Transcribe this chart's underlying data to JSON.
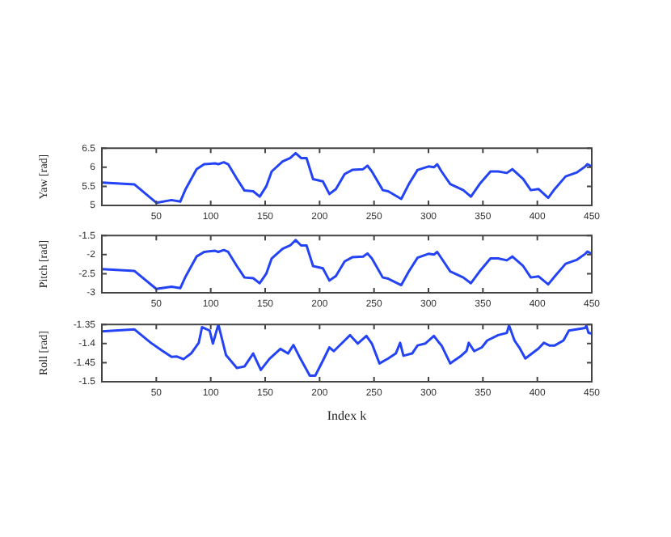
{
  "chart_data": [
    {
      "type": "line",
      "ylabel": "Yaw [rad]",
      "x": [
        0,
        30,
        50,
        64,
        72,
        77,
        87,
        94,
        104,
        107,
        112,
        116,
        124,
        131,
        139,
        145,
        151,
        156,
        166,
        173,
        178,
        183,
        188,
        194,
        203,
        209,
        215,
        223,
        230,
        240,
        244,
        248,
        258,
        263,
        275,
        282,
        290,
        300,
        305,
        308,
        312,
        320,
        332,
        339,
        347,
        357,
        364,
        372,
        377,
        387,
        394,
        401,
        410,
        416,
        426,
        436,
        444,
        446,
        450
      ],
      "series": [
        {
          "color": "#2343f5",
          "values": [
            5.6,
            5.55,
            5.07,
            5.14,
            5.1,
            5.43,
            5.95,
            6.08,
            6.1,
            6.08,
            6.13,
            6.08,
            5.7,
            5.39,
            5.37,
            5.23,
            5.5,
            5.89,
            6.15,
            6.24,
            6.37,
            6.24,
            6.24,
            5.69,
            5.63,
            5.3,
            5.43,
            5.82,
            5.93,
            5.95,
            6.04,
            5.89,
            5.4,
            5.37,
            5.17,
            5.56,
            5.93,
            6.02,
            6.0,
            6.08,
            5.89,
            5.56,
            5.4,
            5.23,
            5.56,
            5.89,
            5.89,
            5.85,
            5.95,
            5.69,
            5.4,
            5.43,
            5.2,
            5.43,
            5.76,
            5.86,
            6.02,
            6.08,
            6.02
          ]
        }
      ],
      "xlim": [
        0,
        450
      ],
      "xticks": [
        50,
        100,
        150,
        200,
        250,
        300,
        350,
        400,
        450
      ],
      "ylim": [
        5,
        6.5
      ],
      "yticks": [
        5,
        5.5,
        6,
        6.5
      ],
      "grid": false,
      "legend": false
    },
    {
      "type": "line",
      "ylabel": "Pitch [rad]",
      "x": [
        0,
        30,
        50,
        64,
        72,
        77,
        87,
        94,
        104,
        107,
        112,
        116,
        124,
        131,
        139,
        145,
        151,
        156,
        166,
        173,
        178,
        183,
        188,
        194,
        203,
        209,
        215,
        223,
        230,
        240,
        244,
        248,
        258,
        263,
        275,
        282,
        290,
        300,
        305,
        308,
        312,
        320,
        332,
        339,
        347,
        357,
        364,
        372,
        377,
        387,
        394,
        401,
        410,
        416,
        426,
        436,
        444,
        446,
        450
      ],
      "series": [
        {
          "color": "#2343f5",
          "values": [
            -2.38,
            -2.43,
            -2.9,
            -2.84,
            -2.88,
            -2.57,
            -2.05,
            -1.93,
            -1.9,
            -1.93,
            -1.88,
            -1.93,
            -2.3,
            -2.6,
            -2.62,
            -2.75,
            -2.5,
            -2.1,
            -1.85,
            -1.76,
            -1.62,
            -1.76,
            -1.76,
            -2.3,
            -2.36,
            -2.68,
            -2.56,
            -2.18,
            -2.07,
            -2.05,
            -1.97,
            -2.1,
            -2.6,
            -2.63,
            -2.8,
            -2.44,
            -2.08,
            -1.98,
            -2.0,
            -1.93,
            -2.1,
            -2.44,
            -2.6,
            -2.75,
            -2.44,
            -2.1,
            -2.1,
            -2.15,
            -2.05,
            -2.3,
            -2.6,
            -2.57,
            -2.78,
            -2.57,
            -2.24,
            -2.14,
            -1.98,
            -1.92,
            -1.98
          ]
        }
      ],
      "xlim": [
        0,
        450
      ],
      "xticks": [
        50,
        100,
        150,
        200,
        250,
        300,
        350,
        400,
        450
      ],
      "ylim": [
        -3,
        -1.5
      ],
      "yticks": [
        -3,
        -2.5,
        -2,
        -1.5
      ],
      "grid": false,
      "legend": false
    },
    {
      "type": "line",
      "ylabel": "Roll [rad]",
      "xlabel": "Index k",
      "x": [
        0,
        30,
        45,
        55,
        64,
        69,
        75,
        82,
        89,
        92,
        99,
        102,
        107,
        114,
        124,
        131,
        139,
        146,
        154,
        164,
        171,
        176,
        181,
        191,
        196,
        203,
        209,
        213,
        223,
        228,
        235,
        243,
        248,
        255,
        263,
        270,
        274,
        277,
        285,
        290,
        297,
        305,
        309,
        312,
        320,
        330,
        335,
        337,
        342,
        349,
        354,
        364,
        372,
        374,
        379,
        384,
        389,
        401,
        406,
        411,
        416,
        424,
        429,
        444,
        445,
        447,
        450
      ],
      "series": [
        {
          "color": "#2343f5",
          "values": [
            -1.368,
            -1.363,
            -1.398,
            -1.418,
            -1.435,
            -1.434,
            -1.441,
            -1.426,
            -1.398,
            -1.357,
            -1.366,
            -1.4,
            -1.35,
            -1.43,
            -1.464,
            -1.46,
            -1.426,
            -1.469,
            -1.44,
            -1.414,
            -1.426,
            -1.404,
            -1.432,
            -1.484,
            -1.484,
            -1.445,
            -1.41,
            -1.42,
            -1.392,
            -1.378,
            -1.4,
            -1.38,
            -1.4,
            -1.452,
            -1.439,
            -1.426,
            -1.398,
            -1.432,
            -1.426,
            -1.405,
            -1.4,
            -1.38,
            -1.395,
            -1.405,
            -1.452,
            -1.432,
            -1.419,
            -1.398,
            -1.42,
            -1.41,
            -1.392,
            -1.378,
            -1.372,
            -1.352,
            -1.392,
            -1.413,
            -1.439,
            -1.413,
            -1.398,
            -1.405,
            -1.405,
            -1.392,
            -1.366,
            -1.359,
            -1.353,
            -1.372,
            -1.374
          ]
        }
      ],
      "xlim": [
        0,
        450
      ],
      "xticks": [
        50,
        100,
        150,
        200,
        250,
        300,
        350,
        400,
        450
      ],
      "ylim": [
        -1.5,
        -1.35
      ],
      "yticks": [
        -1.5,
        -1.45,
        -1.4,
        -1.35
      ],
      "grid": false,
      "legend": false
    }
  ]
}
